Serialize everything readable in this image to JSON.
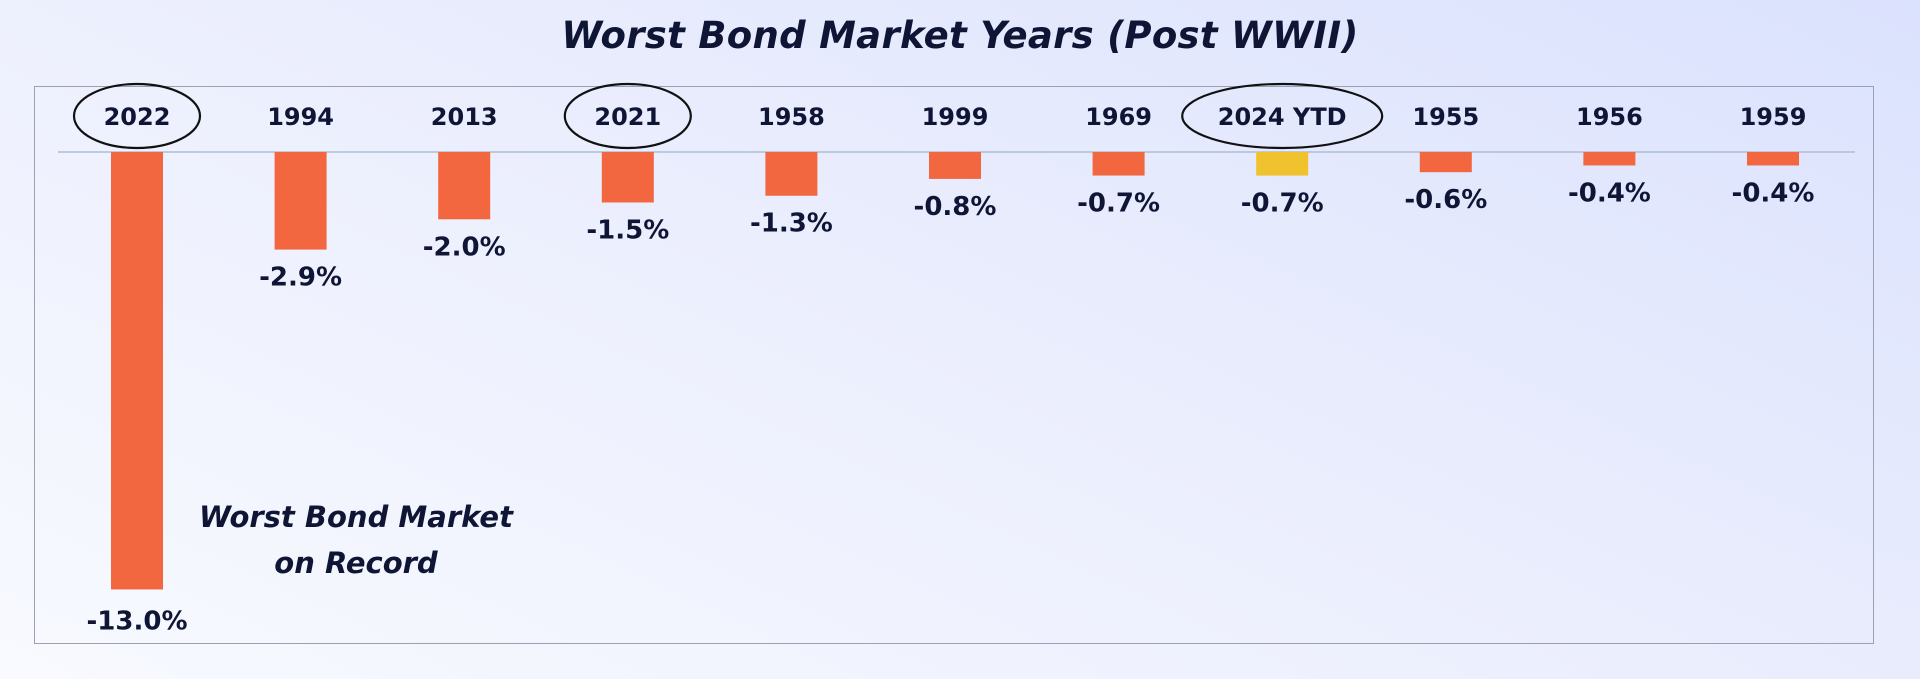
{
  "chart_data": {
    "type": "bar",
    "title": "Worst Bond Market Years (Post WWII)",
    "categories": [
      "2022",
      "1994",
      "2013",
      "2021",
      "1958",
      "1999",
      "1969",
      "2024 YTD",
      "1955",
      "1956",
      "1959"
    ],
    "values": [
      -13.0,
      -2.9,
      -2.0,
      -1.5,
      -1.3,
      -0.8,
      -0.7,
      -0.7,
      -0.6,
      -0.4,
      -0.4
    ],
    "data_labels": [
      "-13.0%",
      "-2.9%",
      "-2.0%",
      "-1.5%",
      "-1.3%",
      "-0.8%",
      "-0.7%",
      "-0.7%",
      "-0.6%",
      "-0.4%",
      "-0.4%"
    ],
    "circled": [
      "2022",
      "2021",
      "2024 YTD"
    ],
    "highlighted": "2024 YTD",
    "annotation": "Worst Bond Market on Record",
    "xlabel": "",
    "ylabel": "",
    "ylim": [
      -13,
      0
    ],
    "grid": false,
    "legend": "none",
    "colors": {
      "bar": "#f26640",
      "highlight": "#f0c22e",
      "text": "#0f1535",
      "baseline": "#aebdd4"
    }
  }
}
